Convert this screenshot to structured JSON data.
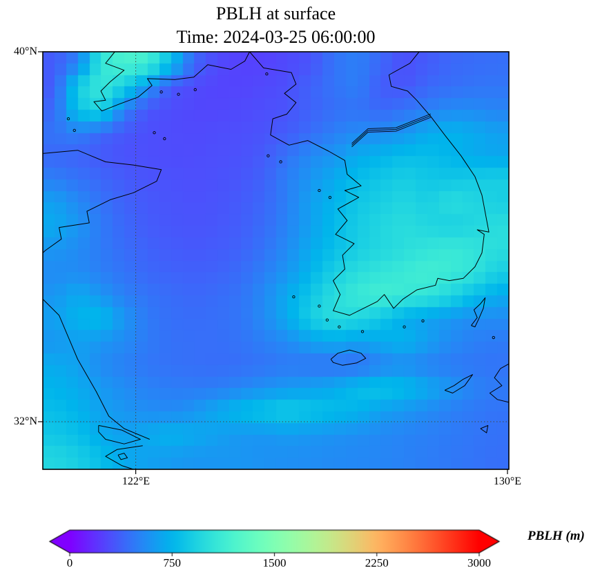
{
  "figure": {
    "title": "PBLH at surface",
    "subtitle": "Time: 2024-03-25 06:00:00"
  },
  "map": {
    "lon_min": 120.0,
    "lon_max": 130.03,
    "lat_min": 30.97,
    "lat_max": 40.0,
    "xticks": [
      {
        "value": 122,
        "label": "122°E"
      },
      {
        "value": 130,
        "label": "130°E"
      }
    ],
    "yticks": [
      {
        "value": 40,
        "label": "40°N"
      },
      {
        "value": 32,
        "label": "32°N"
      }
    ],
    "gridline_lons": [
      122
    ],
    "gridline_lats": [
      32
    ],
    "frame_color": "#000000",
    "gridline_color": "#444444",
    "coastline_color": "#000000"
  },
  "chart_data": {
    "type": "heatmap",
    "title": "PBLH at surface",
    "time": "2024-03-25 06:00:00",
    "variable": "PBLH",
    "units": "m",
    "colormap": "rainbow",
    "vmin": 0,
    "vmax": 3000,
    "extent": {
      "lon": [
        120.0,
        130.0
      ],
      "lat": [
        31.0,
        40.0
      ]
    },
    "grid": {
      "ncols": 20,
      "nrows": 18,
      "lon_start": 120.25,
      "lon_step": 0.5,
      "lat_start": 39.75,
      "lat_step": -0.5
    },
    "values": [
      [
        350,
        500,
        1050,
        1200,
        1150,
        800,
        400,
        280,
        250,
        250,
        280,
        320,
        450,
        500,
        400,
        300,
        350,
        400,
        420,
        430
      ],
      [
        350,
        900,
        1100,
        900,
        600,
        330,
        280,
        260,
        260,
        280,
        300,
        380,
        450,
        500,
        350,
        320,
        400,
        430,
        450,
        460
      ],
      [
        400,
        850,
        950,
        500,
        320,
        290,
        270,
        270,
        280,
        300,
        320,
        380,
        430,
        450,
        400,
        450,
        500,
        550,
        550,
        520
      ],
      [
        450,
        500,
        400,
        330,
        300,
        290,
        280,
        290,
        300,
        320,
        350,
        420,
        500,
        550,
        550,
        600,
        700,
        750,
        700,
        650
      ],
      [
        400,
        380,
        340,
        310,
        300,
        290,
        290,
        300,
        310,
        350,
        450,
        550,
        600,
        700,
        750,
        800,
        800,
        750,
        700,
        680
      ],
      [
        500,
        450,
        400,
        350,
        320,
        310,
        300,
        310,
        330,
        380,
        500,
        600,
        700,
        800,
        850,
        900,
        850,
        850,
        880,
        900
      ],
      [
        650,
        550,
        450,
        380,
        340,
        320,
        310,
        320,
        350,
        400,
        500,
        650,
        750,
        850,
        900,
        950,
        900,
        1000,
        950,
        900
      ],
      [
        700,
        600,
        480,
        400,
        350,
        330,
        320,
        330,
        360,
        420,
        520,
        650,
        780,
        880,
        950,
        1000,
        950,
        900,
        950,
        1000
      ],
      [
        600,
        550,
        480,
        420,
        380,
        350,
        340,
        350,
        380,
        450,
        550,
        700,
        800,
        900,
        950,
        1000,
        1050,
        1100,
        1050,
        1000
      ],
      [
        550,
        550,
        500,
        450,
        400,
        380,
        370,
        380,
        420,
        500,
        600,
        750,
        900,
        1000,
        1050,
        1100,
        1150,
        1100,
        1050,
        900
      ],
      [
        600,
        700,
        600,
        500,
        450,
        420,
        400,
        420,
        450,
        550,
        700,
        850,
        1000,
        1100,
        1150,
        1100,
        1050,
        950,
        800,
        700
      ],
      [
        650,
        750,
        800,
        600,
        480,
        430,
        420,
        430,
        460,
        550,
        700,
        900,
        1000,
        950,
        850,
        700,
        650,
        600,
        550,
        550
      ],
      [
        600,
        650,
        600,
        550,
        480,
        440,
        430,
        430,
        450,
        500,
        550,
        650,
        700,
        650,
        700,
        750,
        650,
        550,
        500,
        480
      ],
      [
        700,
        650,
        550,
        500,
        460,
        440,
        430,
        420,
        430,
        450,
        470,
        450,
        430,
        420,
        500,
        550,
        500,
        480,
        460,
        450
      ],
      [
        750,
        700,
        620,
        560,
        510,
        490,
        480,
        490,
        530,
        580,
        620,
        650,
        700,
        800,
        850,
        800,
        700,
        600,
        520,
        480
      ],
      [
        800,
        750,
        650,
        600,
        560,
        550,
        600,
        700,
        800,
        850,
        900,
        850,
        800,
        750,
        650,
        600,
        550,
        500,
        470,
        450
      ],
      [
        850,
        800,
        700,
        650,
        700,
        750,
        700,
        650,
        600,
        600,
        620,
        600,
        580,
        560,
        540,
        520,
        500,
        480,
        460,
        440
      ],
      [
        950,
        900,
        800,
        700,
        650,
        620,
        600,
        600,
        600,
        580,
        570,
        560,
        550,
        540,
        530,
        510,
        490,
        470,
        450,
        430
      ]
    ],
    "colorbar": {
      "label": "PBLH (m)",
      "ticks": [
        0,
        750,
        1500,
        2250,
        3000
      ],
      "tick_labels": [
        "0",
        "750",
        "1500",
        "2250",
        "3000"
      ],
      "extend": "both",
      "orientation": "horizontal"
    }
  },
  "geo": {
    "coastlines": [
      {
        "name": "liaodong-coast",
        "points": [
          [
            121.55,
            40.0
          ],
          [
            121.35,
            39.75
          ],
          [
            121.75,
            39.6
          ],
          [
            121.45,
            39.35
          ],
          [
            121.25,
            39.15
          ],
          [
            121.35,
            38.95
          ],
          [
            121.1,
            38.92
          ],
          [
            121.27,
            38.72
          ],
          [
            121.65,
            38.87
          ],
          [
            122.05,
            39.02
          ],
          [
            122.35,
            39.27
          ],
          [
            122.25,
            39.42
          ],
          [
            122.85,
            39.4
          ],
          [
            123.25,
            39.45
          ],
          [
            123.55,
            39.72
          ],
          [
            124.05,
            39.62
          ],
          [
            124.35,
            39.8
          ],
          [
            124.45,
            40.0
          ]
        ]
      },
      {
        "name": "korea-outline",
        "points": [
          [
            124.45,
            40.0
          ],
          [
            124.75,
            39.65
          ],
          [
            125.35,
            39.55
          ],
          [
            125.45,
            39.3
          ],
          [
            125.2,
            39.1
          ],
          [
            125.45,
            38.9
          ],
          [
            125.25,
            38.65
          ],
          [
            124.95,
            38.55
          ],
          [
            124.9,
            38.2
          ],
          [
            125.3,
            37.98
          ],
          [
            125.7,
            38.08
          ],
          [
            126.15,
            37.85
          ],
          [
            126.5,
            37.65
          ],
          [
            126.55,
            37.35
          ],
          [
            126.85,
            37.1
          ],
          [
            126.5,
            37.0
          ],
          [
            126.8,
            36.85
          ],
          [
            126.35,
            36.6
          ],
          [
            126.55,
            36.35
          ],
          [
            126.3,
            36.05
          ],
          [
            126.7,
            35.85
          ],
          [
            126.45,
            35.6
          ],
          [
            126.5,
            35.3
          ],
          [
            126.25,
            35.05
          ],
          [
            126.4,
            34.75
          ],
          [
            126.25,
            34.4
          ],
          [
            126.6,
            34.3
          ],
          [
            126.9,
            34.45
          ],
          [
            127.2,
            34.6
          ],
          [
            127.35,
            34.75
          ],
          [
            127.55,
            34.45
          ],
          [
            127.75,
            34.65
          ],
          [
            128.05,
            34.85
          ],
          [
            128.45,
            34.95
          ],
          [
            128.5,
            35.1
          ],
          [
            128.75,
            35.05
          ],
          [
            129.05,
            35.1
          ],
          [
            129.3,
            35.35
          ],
          [
            129.45,
            35.65
          ],
          [
            129.5,
            36.05
          ],
          [
            129.35,
            36.15
          ],
          [
            129.6,
            36.1
          ],
          [
            129.45,
            36.9
          ],
          [
            129.3,
            37.3
          ],
          [
            129.0,
            37.75
          ],
          [
            128.65,
            38.2
          ],
          [
            128.35,
            38.6
          ],
          [
            128.05,
            38.95
          ],
          [
            127.85,
            39.15
          ],
          [
            127.5,
            39.25
          ],
          [
            127.45,
            39.5
          ],
          [
            127.9,
            39.75
          ],
          [
            128.1,
            40.0
          ]
        ]
      },
      {
        "name": "shandong-coast",
        "points": [
          [
            120.0,
            37.8
          ],
          [
            120.75,
            37.87
          ],
          [
            121.35,
            37.62
          ],
          [
            121.95,
            37.55
          ],
          [
            122.55,
            37.45
          ],
          [
            122.45,
            37.2
          ],
          [
            121.95,
            36.95
          ],
          [
            121.45,
            36.8
          ],
          [
            120.95,
            36.55
          ],
          [
            121.0,
            36.3
          ],
          [
            120.35,
            36.2
          ],
          [
            120.4,
            35.95
          ],
          [
            120.05,
            35.7
          ],
          [
            120.0,
            35.65
          ]
        ]
      },
      {
        "name": "jiangsu-coast",
        "points": [
          [
            120.0,
            34.65
          ],
          [
            120.35,
            34.3
          ],
          [
            120.75,
            33.35
          ],
          [
            121.15,
            32.65
          ],
          [
            121.42,
            32.12
          ],
          [
            121.75,
            31.85
          ],
          [
            122.3,
            31.62
          ]
        ]
      },
      {
        "name": "chongming-island",
        "points": [
          [
            121.2,
            31.92
          ],
          [
            121.7,
            31.82
          ],
          [
            122.1,
            31.62
          ],
          [
            121.75,
            31.52
          ],
          [
            121.35,
            31.62
          ],
          [
            121.2,
            31.78
          ],
          [
            121.2,
            31.92
          ]
        ]
      },
      {
        "name": "yangtze-south-bank",
        "points": [
          [
            122.15,
            31.48
          ],
          [
            121.6,
            31.4
          ],
          [
            121.35,
            31.25
          ],
          [
            121.7,
            31.05
          ],
          [
            121.95,
            30.97
          ]
        ]
      },
      {
        "name": "yangtze-islet",
        "points": [
          [
            121.62,
            31.28
          ],
          [
            121.75,
            31.32
          ],
          [
            121.82,
            31.22
          ],
          [
            121.68,
            31.18
          ],
          [
            121.62,
            31.28
          ]
        ]
      },
      {
        "name": "jeju-island",
        "points": [
          [
            126.2,
            33.35
          ],
          [
            126.35,
            33.48
          ],
          [
            126.6,
            33.55
          ],
          [
            126.85,
            33.48
          ],
          [
            126.95,
            33.37
          ],
          [
            126.75,
            33.27
          ],
          [
            126.45,
            33.22
          ],
          [
            126.25,
            33.28
          ],
          [
            126.2,
            33.35
          ]
        ]
      },
      {
        "name": "tsushima-island",
        "points": [
          [
            129.22,
            34.08
          ],
          [
            129.35,
            34.25
          ],
          [
            129.28,
            34.42
          ],
          [
            129.42,
            34.55
          ],
          [
            129.52,
            34.68
          ],
          [
            129.48,
            34.45
          ],
          [
            129.38,
            34.22
          ],
          [
            129.3,
            34.05
          ],
          [
            129.22,
            34.08
          ]
        ]
      },
      {
        "name": "kyushu-west-coast",
        "points": [
          [
            130.03,
            33.25
          ],
          [
            129.85,
            33.15
          ],
          [
            129.72,
            32.95
          ],
          [
            129.88,
            32.78
          ],
          [
            129.62,
            32.62
          ],
          [
            129.78,
            32.48
          ],
          [
            130.03,
            32.42
          ]
        ]
      },
      {
        "name": "goto-islands",
        "points": [
          [
            128.65,
            32.68
          ],
          [
            128.85,
            32.78
          ],
          [
            129.05,
            32.92
          ],
          [
            129.25,
            33.02
          ],
          [
            129.08,
            32.78
          ],
          [
            128.82,
            32.62
          ],
          [
            128.65,
            32.68
          ]
        ]
      },
      {
        "name": "south-islet",
        "points": [
          [
            129.42,
            31.85
          ],
          [
            129.58,
            31.92
          ],
          [
            129.55,
            31.76
          ],
          [
            129.42,
            31.85
          ]
        ]
      }
    ],
    "border_dmz": {
      "name": "korean-dmz",
      "points": [
        [
          126.65,
          37.98
        ],
        [
          127.0,
          38.3
        ],
        [
          127.6,
          38.32
        ],
        [
          128.05,
          38.5
        ],
        [
          128.35,
          38.62
        ]
      ]
    },
    "island_dots": [
      [
        120.55,
        38.55
      ],
      [
        120.68,
        38.3
      ],
      [
        122.4,
        38.25
      ],
      [
        122.62,
        38.12
      ],
      [
        122.55,
        39.13
      ],
      [
        122.92,
        39.08
      ],
      [
        123.28,
        39.18
      ],
      [
        124.82,
        39.52
      ],
      [
        124.85,
        37.75
      ],
      [
        125.12,
        37.62
      ],
      [
        125.95,
        37.0
      ],
      [
        126.18,
        36.85
      ],
      [
        125.4,
        34.7
      ],
      [
        125.95,
        34.5
      ],
      [
        126.12,
        34.2
      ],
      [
        126.38,
        34.05
      ],
      [
        127.78,
        34.05
      ],
      [
        128.18,
        34.18
      ],
      [
        126.88,
        33.95
      ],
      [
        129.7,
        33.82
      ]
    ]
  }
}
